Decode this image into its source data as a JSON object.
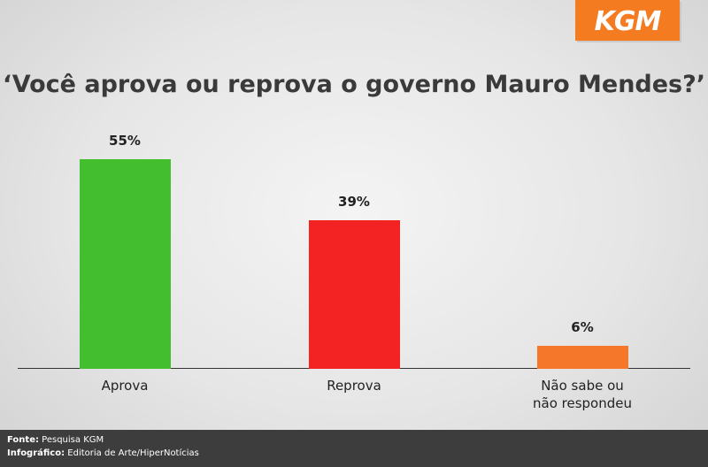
{
  "logo": "KGM",
  "chart_data": {
    "type": "bar",
    "title": "‘Você aprova ou reprova o governo Mauro Mendes?’",
    "categories": [
      "Aprova",
      "Reprova",
      "Não sabe ou não respondeu"
    ],
    "values": [
      55,
      39,
      6
    ],
    "value_labels": [
      "55%",
      "39%",
      "6%"
    ],
    "colors": [
      "#42be2e",
      "#f22322",
      "#f4772a"
    ]
  },
  "footer": {
    "source_label": "Fonte:",
    "source": "Pesquisa KGM",
    "credit_label": "Infográfico:",
    "credit": "Editoria de Arte/HiperNotícias"
  }
}
